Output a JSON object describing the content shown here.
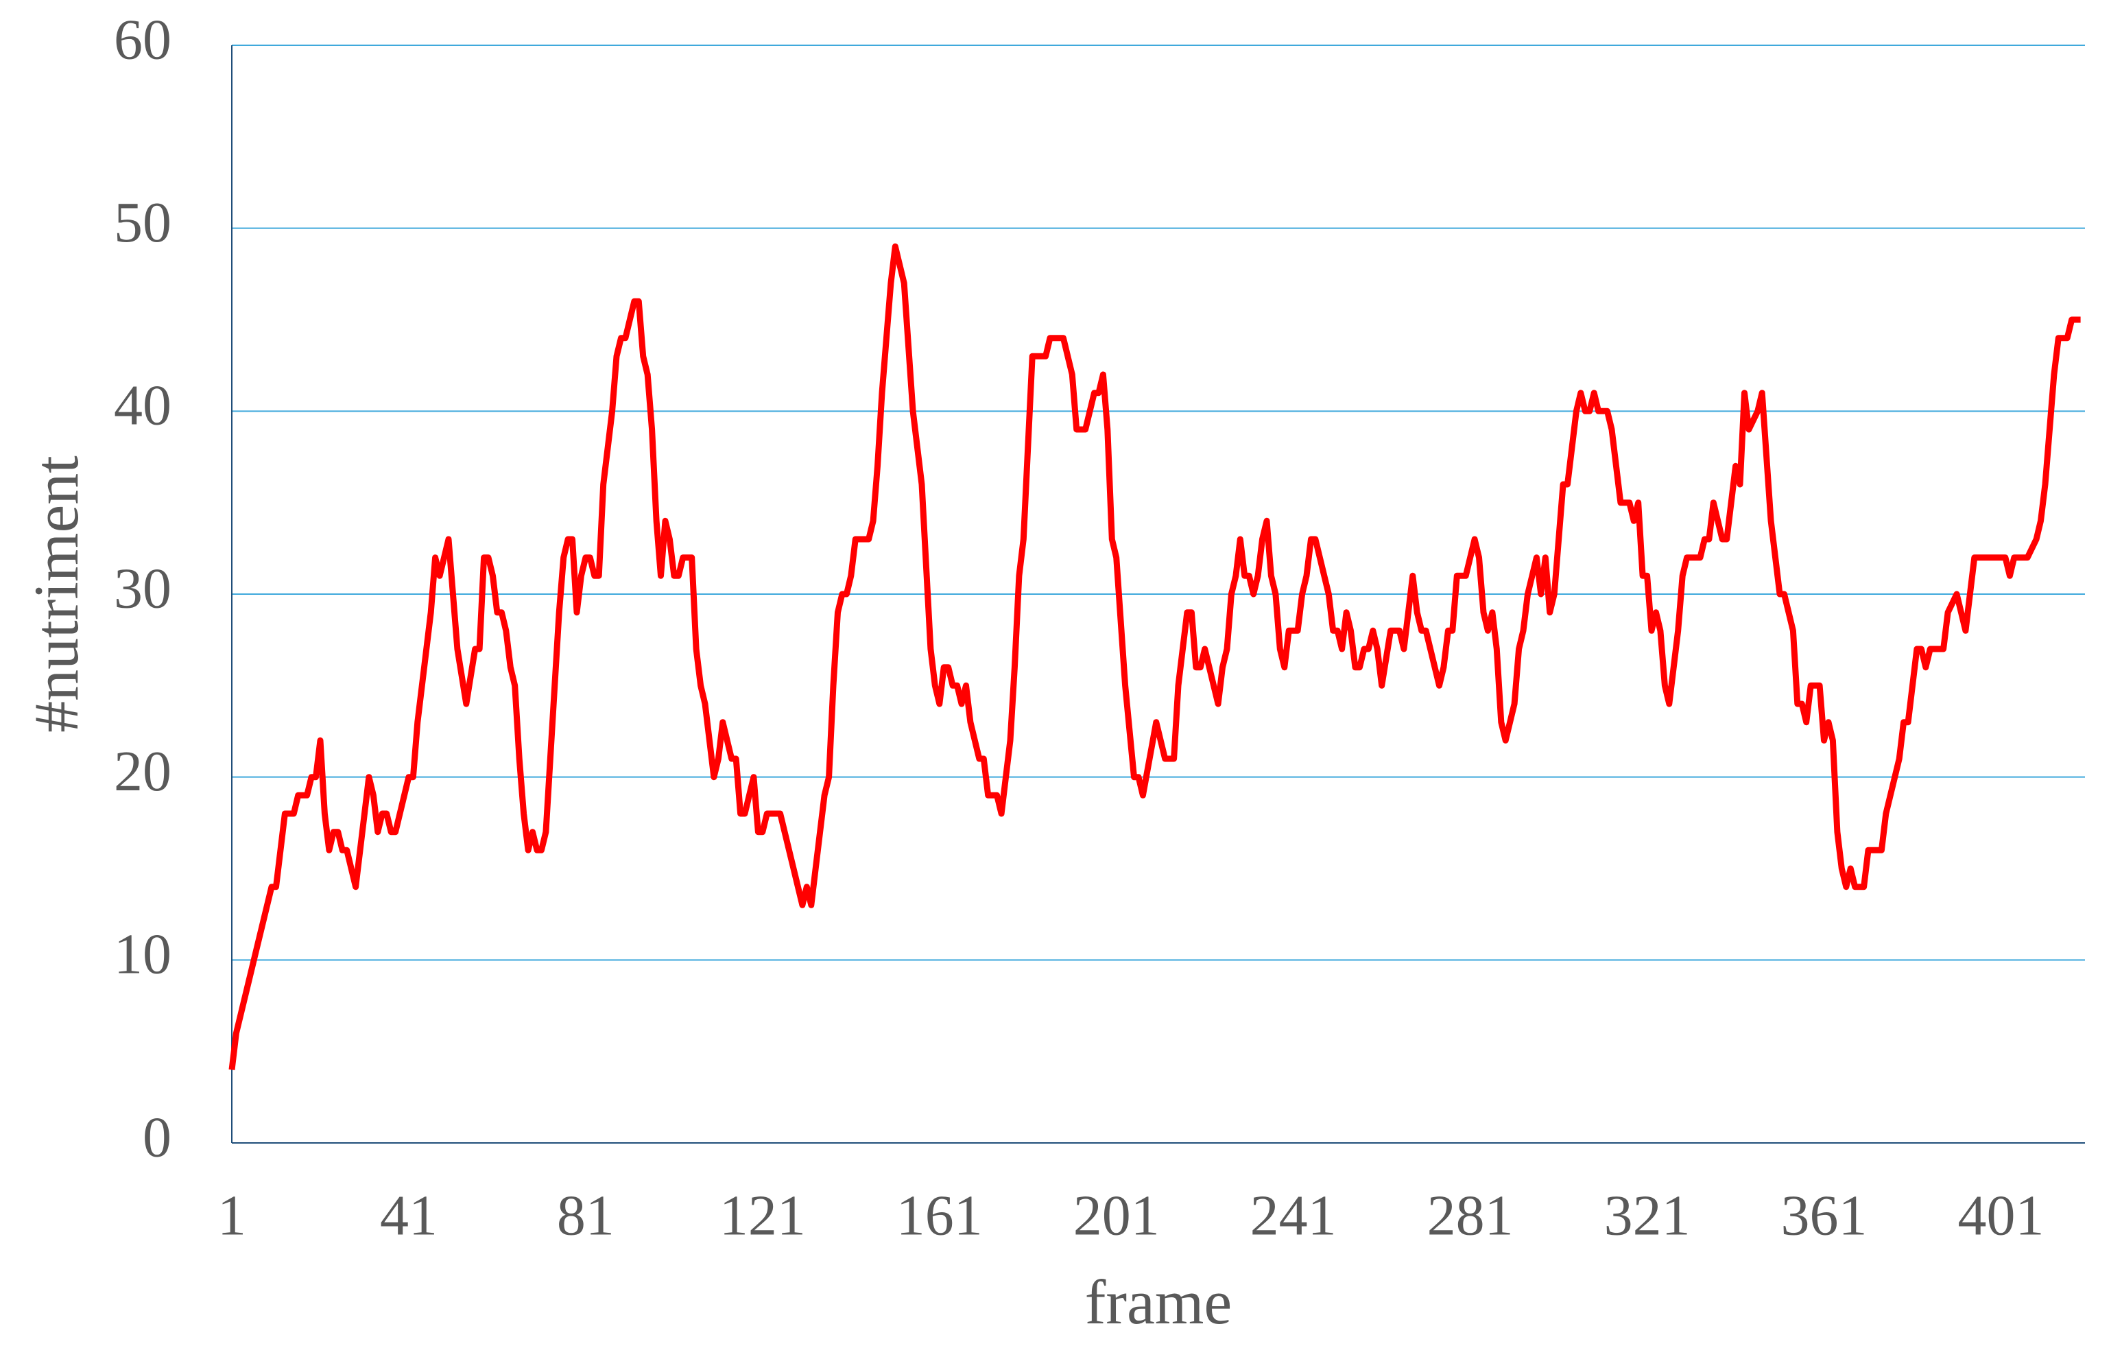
{
  "chart_data": {
    "type": "line",
    "x_label": "frame",
    "y_label": "#nutriment",
    "color": "#ff0000",
    "grid": true,
    "grid_color": "#3fa9dc",
    "axis_color": "#1f4e79",
    "xlim": [
      1,
      420
    ],
    "ylim": [
      0,
      60
    ],
    "xticks": [
      1,
      41,
      81,
      121,
      161,
      201,
      241,
      281,
      321,
      361,
      401
    ],
    "yticks": [
      0,
      10,
      20,
      30,
      40,
      50,
      60
    ],
    "x": [
      1,
      2,
      6,
      10,
      11,
      13,
      15,
      16,
      18,
      19,
      20,
      21,
      22,
      23,
      24,
      25,
      26,
      27,
      29,
      32,
      33,
      34,
      35,
      36,
      37,
      38,
      41,
      42,
      43,
      46,
      47,
      48,
      50,
      52,
      54,
      56,
      57,
      58,
      59,
      60,
      61,
      62,
      63,
      64,
      65,
      66,
      67,
      68,
      69,
      70,
      71,
      72,
      75,
      76,
      77,
      78,
      79,
      80,
      81,
      82,
      83,
      84,
      85,
      87,
      88,
      89,
      90,
      92,
      93,
      94,
      95,
      96,
      97,
      98,
      99,
      100,
      101,
      102,
      103,
      105,
      106,
      107,
      108,
      110,
      111,
      112,
      114,
      115,
      116,
      117,
      119,
      120,
      121,
      122,
      125,
      130,
      131,
      132,
      133,
      135,
      136,
      137,
      138,
      139,
      140,
      141,
      142,
      145,
      146,
      147,
      148,
      150,
      151,
      153,
      155,
      157,
      159,
      160,
      161,
      162,
      163,
      164,
      165,
      166,
      167,
      168,
      170,
      171,
      172,
      174,
      175,
      177,
      178,
      179,
      180,
      182,
      185,
      186,
      189,
      191,
      192,
      194,
      196,
      197,
      198,
      199,
      200,
      201,
      203,
      205,
      206,
      207,
      210,
      212,
      214,
      215,
      217,
      218,
      219,
      220,
      221,
      223,
      224,
      225,
      226,
      227,
      228,
      229,
      230,
      231,
      232,
      233,
      234,
      235,
      236,
      237,
      238,
      239,
      240,
      242,
      243,
      244,
      245,
      246,
      248,
      249,
      250,
      251,
      252,
      253,
      254,
      255,
      256,
      257,
      258,
      259,
      260,
      261,
      263,
      265,
      266,
      267,
      268,
      269,
      270,
      271,
      273,
      274,
      275,
      276,
      277,
      278,
      280,
      282,
      283,
      284,
      285,
      286,
      287,
      288,
      289,
      291,
      292,
      293,
      294,
      296,
      297,
      298,
      299,
      300,
      302,
      303,
      305,
      306,
      307,
      308,
      309,
      310,
      312,
      313,
      315,
      317,
      318,
      319,
      320,
      321,
      322,
      323,
      324,
      325,
      326,
      328,
      329,
      330,
      333,
      334,
      335,
      336,
      338,
      339,
      341,
      342,
      343,
      344,
      346,
      347,
      349,
      351,
      352,
      354,
      355,
      356,
      357,
      358,
      360,
      361,
      362,
      363,
      364,
      365,
      366,
      367,
      368,
      370,
      371,
      374,
      375,
      378,
      379,
      380,
      382,
      383,
      384,
      385,
      388,
      389,
      391,
      393,
      395,
      402,
      403,
      404,
      407,
      409,
      410,
      411,
      413,
      414,
      416,
      417,
      419
    ],
    "values": [
      4,
      6,
      10,
      14,
      14,
      18,
      18,
      19,
      19,
      20,
      20,
      22,
      18,
      16,
      17,
      17,
      16,
      16,
      14,
      20,
      19,
      17,
      18,
      18,
      17,
      17,
      20,
      20,
      23,
      29,
      32,
      31,
      33,
      27,
      24,
      27,
      27,
      32,
      32,
      31,
      29,
      29,
      28,
      26,
      25,
      21,
      18,
      16,
      17,
      16,
      16,
      17,
      29,
      32,
      33,
      33,
      29,
      31,
      32,
      32,
      31,
      31,
      36,
      40,
      43,
      44,
      44,
      46,
      46,
      43,
      42,
      39,
      34,
      31,
      34,
      33,
      31,
      31,
      32,
      32,
      27,
      25,
      24,
      20,
      21,
      23,
      21,
      21,
      18,
      18,
      20,
      17,
      17,
      18,
      18,
      13,
      14,
      13,
      15,
      19,
      20,
      25,
      29,
      30,
      30,
      31,
      33,
      33,
      34,
      37,
      41,
      47,
      49,
      47,
      40,
      36,
      27,
      25,
      24,
      26,
      26,
      25,
      25,
      24,
      25,
      23,
      21,
      21,
      19,
      19,
      18,
      22,
      26,
      31,
      33,
      43,
      43,
      44,
      44,
      42,
      39,
      39,
      41,
      41,
      42,
      39,
      33,
      32,
      25,
      20,
      20,
      19,
      23,
      21,
      21,
      25,
      29,
      29,
      26,
      26,
      27,
      25,
      24,
      26,
      27,
      30,
      31,
      33,
      31,
      31,
      30,
      31,
      33,
      34,
      31,
      30,
      27,
      26,
      28,
      28,
      30,
      31,
      33,
      33,
      31,
      30,
      28,
      28,
      27,
      29,
      28,
      26,
      26,
      27,
      27,
      28,
      27,
      25,
      28,
      28,
      27,
      29,
      31,
      29,
      28,
      28,
      26,
      25,
      26,
      28,
      28,
      31,
      31,
      33,
      32,
      29,
      28,
      29,
      27,
      23,
      22,
      24,
      27,
      28,
      30,
      32,
      30,
      32,
      29,
      30,
      36,
      36,
      40,
      41,
      40,
      40,
      41,
      40,
      40,
      39,
      35,
      35,
      34,
      35,
      31,
      31,
      28,
      29,
      28,
      25,
      24,
      28,
      31,
      32,
      32,
      33,
      33,
      35,
      33,
      33,
      37,
      36,
      41,
      39,
      40,
      41,
      34,
      30,
      30,
      28,
      24,
      24,
      23,
      25,
      25,
      22,
      23,
      22,
      17,
      15,
      14,
      15,
      14,
      14,
      16,
      16,
      18,
      21,
      23,
      23,
      27,
      27,
      26,
      27,
      27,
      29,
      30,
      28,
      32,
      32,
      31,
      32,
      32,
      33,
      34,
      36,
      42,
      44,
      44,
      45,
      45
    ]
  }
}
